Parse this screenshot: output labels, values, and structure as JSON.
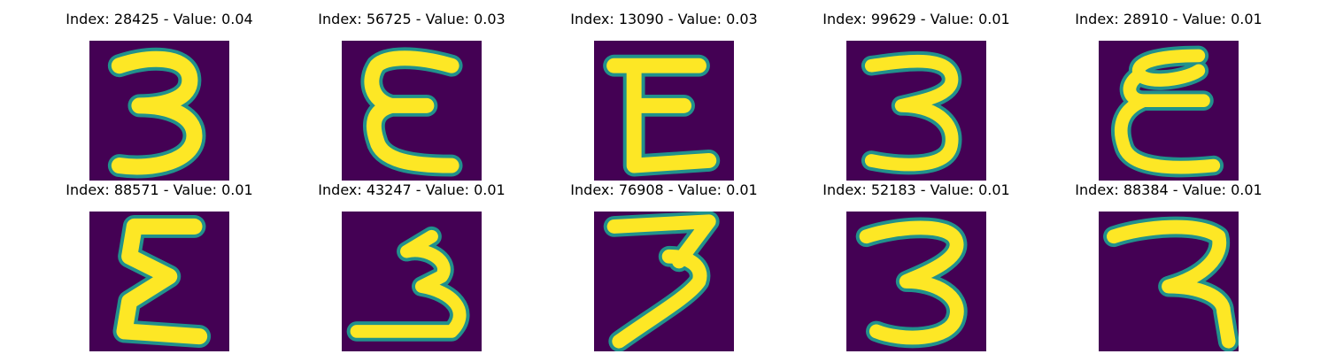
{
  "figure": {
    "colormap": "viridis",
    "background": "#440154",
    "panels": [
      {
        "title": "Index: 28425 - Value: 0.04",
        "glyph": "3",
        "glyph_style": "digit-three-bold"
      },
      {
        "title": "Index: 56725 - Value: 0.03",
        "glyph": "E",
        "glyph_style": "letter-e-round"
      },
      {
        "title": "Index: 13090 - Value: 0.03",
        "glyph": "E",
        "glyph_style": "letter-e-block"
      },
      {
        "title": "Index: 99629 - Value: 0.01",
        "glyph": "3",
        "glyph_style": "digit-three-thin"
      },
      {
        "title": "Index: 28910 - Value: 0.01",
        "glyph": "E",
        "glyph_style": "letter-e-curly"
      },
      {
        "title": "Index: 88571 - Value: 0.01",
        "glyph": "E",
        "glyph_style": "letter-e-zigzag"
      },
      {
        "title": "Index: 43247 - Value: 0.01",
        "glyph": "3",
        "glyph_style": "digit-three-flat-base"
      },
      {
        "title": "Index: 76908 - Value: 0.01",
        "glyph": "3",
        "glyph_style": "digit-three-slanted"
      },
      {
        "title": "Index: 52183 - Value: 0.01",
        "glyph": "3",
        "glyph_style": "digit-three-loop"
      },
      {
        "title": "Index: 88384 - Value: 0.01",
        "glyph": "3",
        "glyph_style": "digit-three-open"
      }
    ]
  }
}
